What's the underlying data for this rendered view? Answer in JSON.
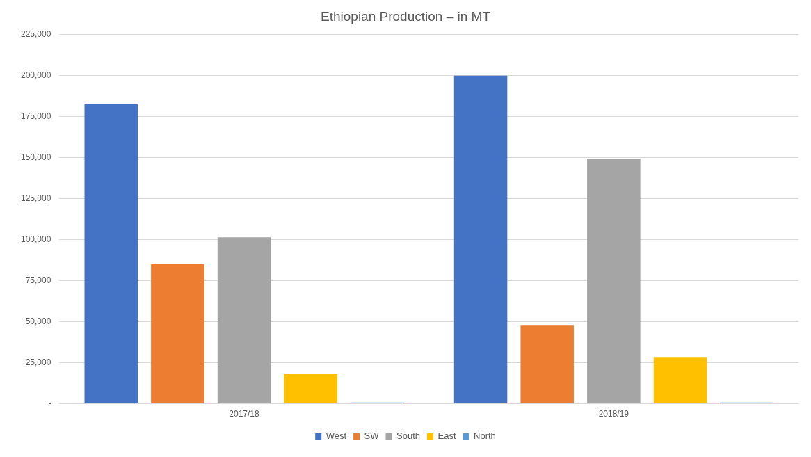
{
  "chart_data": {
    "type": "bar",
    "title": "Ethiopian Production – in MT",
    "categories": [
      "2017/18",
      "2018/19"
    ],
    "series": [
      {
        "name": "West",
        "color": "#4472c4",
        "values": [
          182500,
          200000
        ]
      },
      {
        "name": "SW",
        "color": "#ed7d31",
        "values": [
          85000,
          48000
        ]
      },
      {
        "name": "South",
        "color": "#a5a5a5",
        "values": [
          101500,
          149500
        ]
      },
      {
        "name": "East",
        "color": "#ffc000",
        "values": [
          18500,
          28500
        ]
      },
      {
        "name": "North",
        "color": "#5b9bd5",
        "values": [
          800,
          800
        ]
      }
    ],
    "ylim": [
      0,
      225000
    ],
    "yticks": [
      {
        "value": 0,
        "label": "-"
      },
      {
        "value": 25000,
        "label": "25,000"
      },
      {
        "value": 50000,
        "label": "50,000"
      },
      {
        "value": 75000,
        "label": "75,000"
      },
      {
        "value": 100000,
        "label": "100,000"
      },
      {
        "value": 125000,
        "label": "125,000"
      },
      {
        "value": 150000,
        "label": "150,000"
      },
      {
        "value": 175000,
        "label": "175,000"
      },
      {
        "value": 200000,
        "label": "200,000"
      },
      {
        "value": 225000,
        "label": "225,000"
      }
    ],
    "grid": "y",
    "legend": "bottom"
  }
}
